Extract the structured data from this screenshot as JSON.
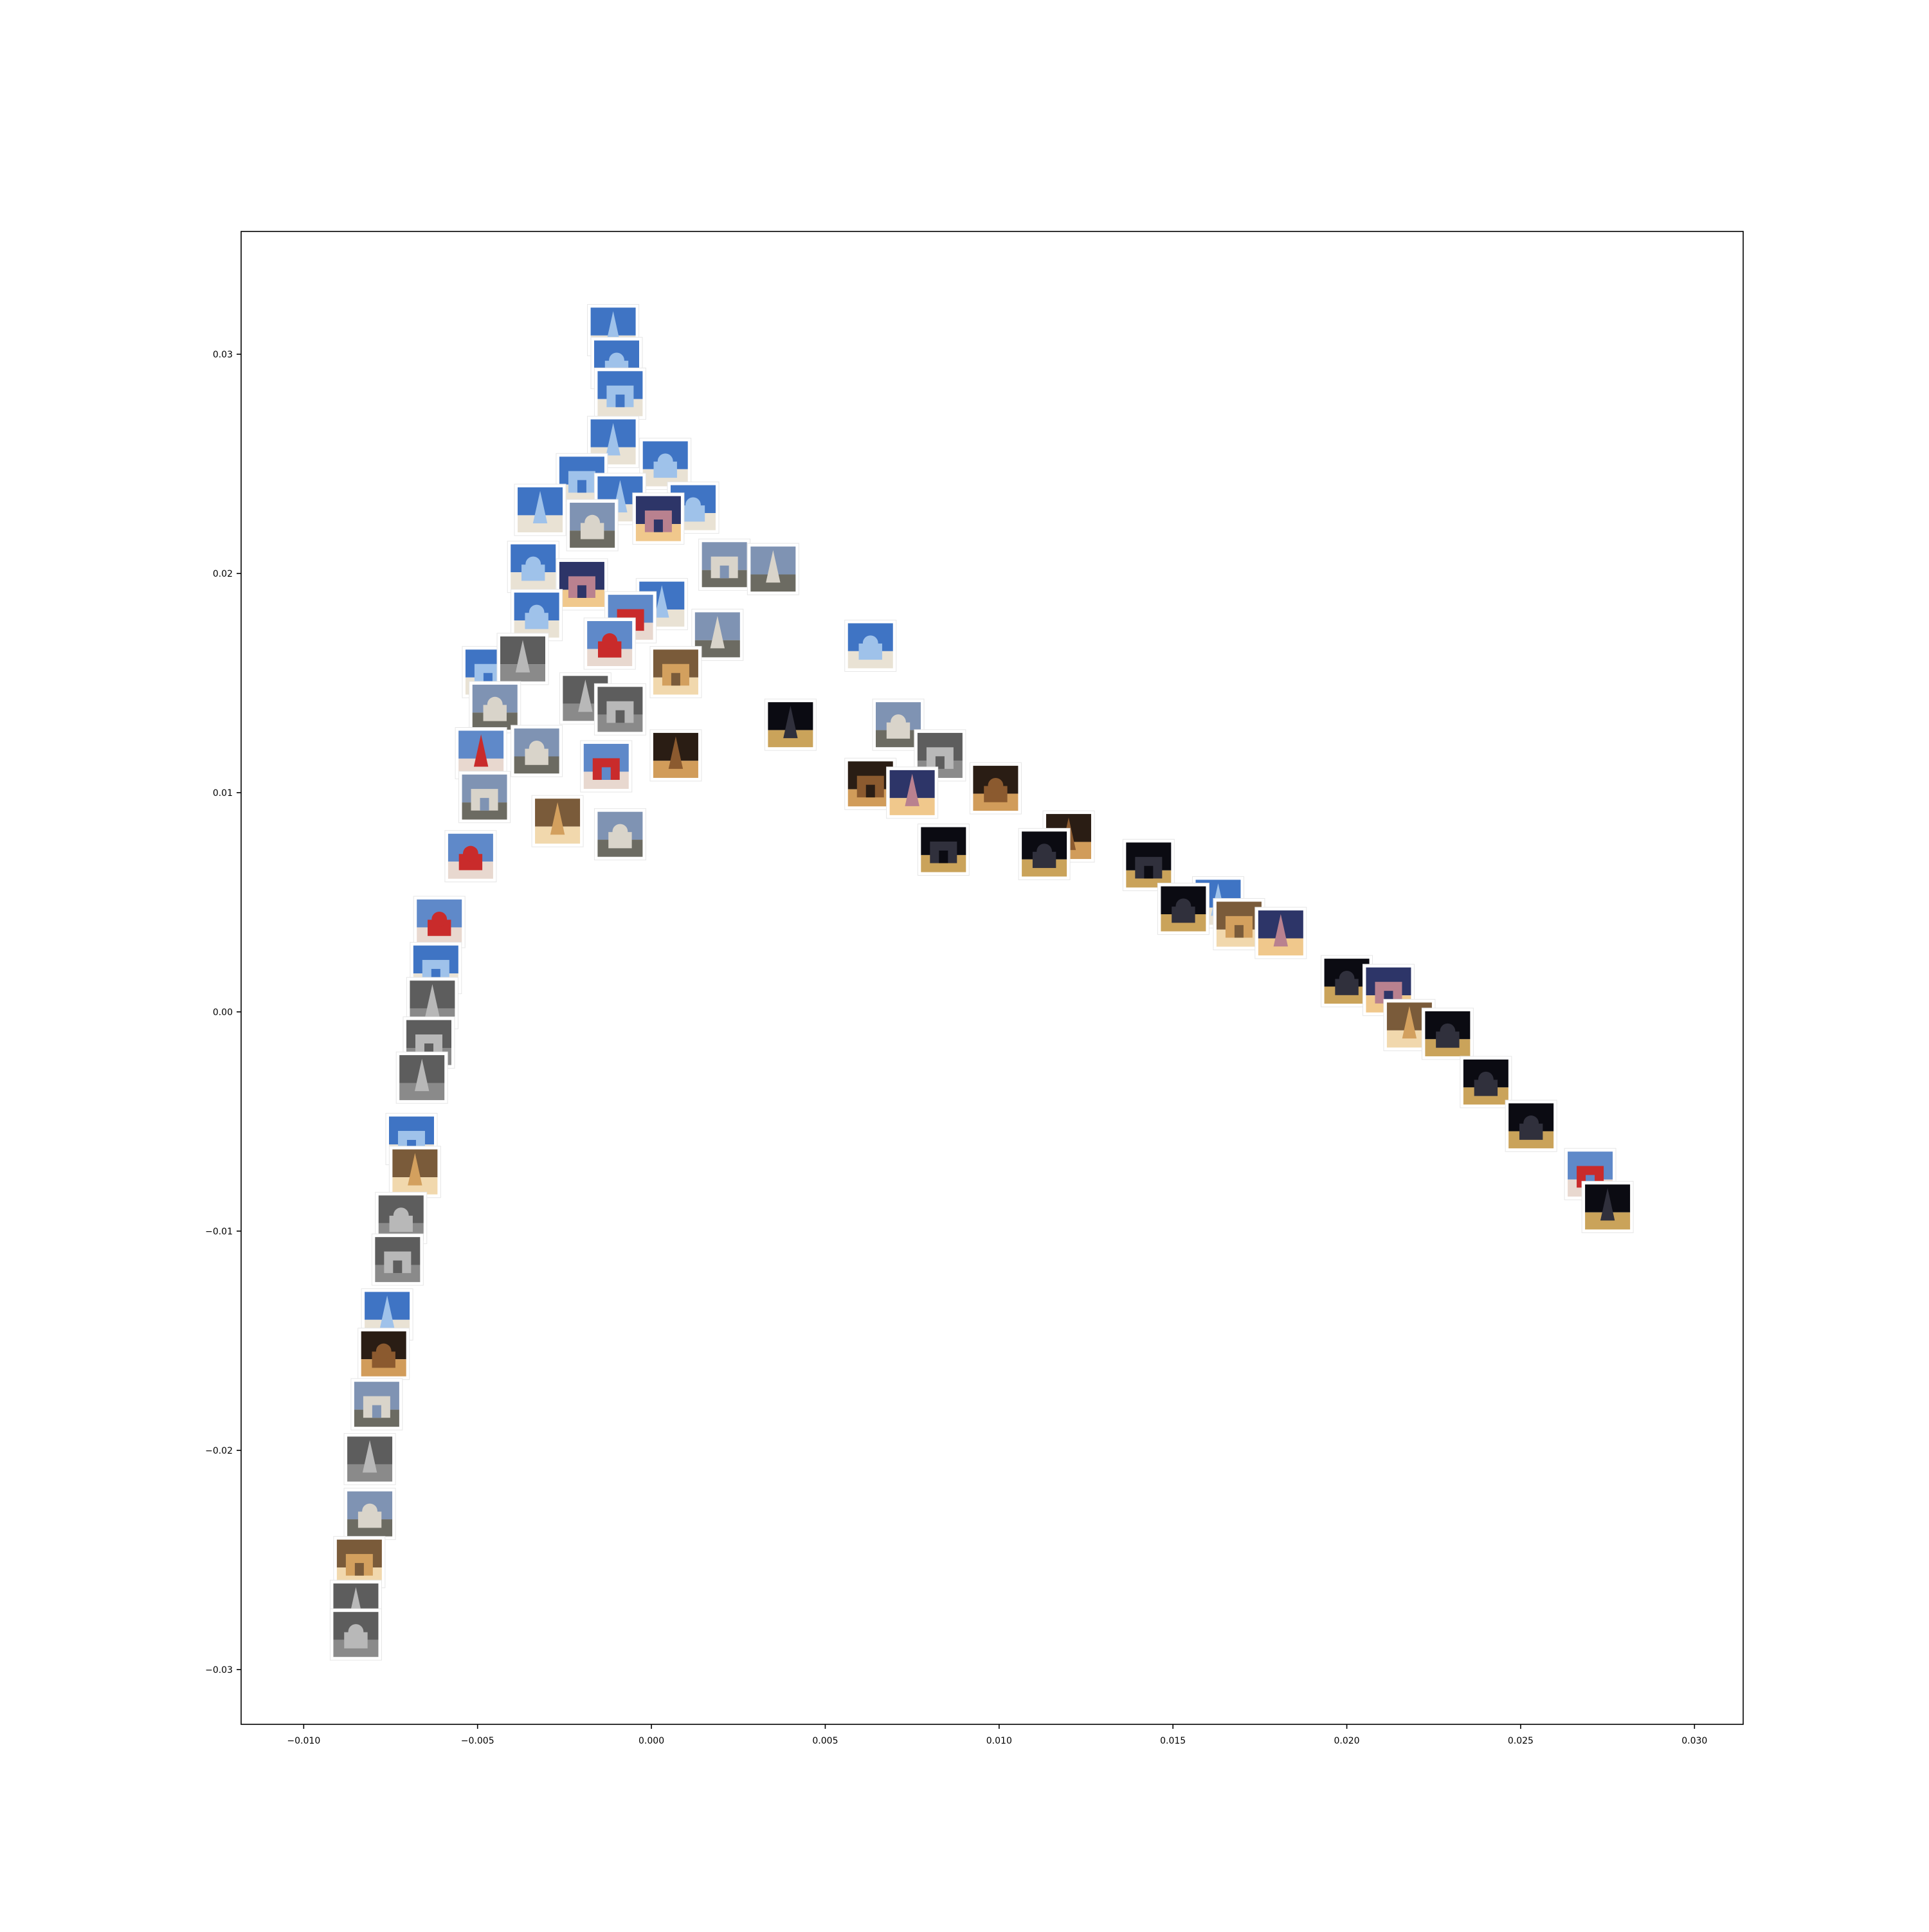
{
  "chart_data": {
    "type": "scatter",
    "marker": "image-thumbnail",
    "title": "",
    "xlabel": "",
    "ylabel": "",
    "xlim": [
      -0.0118,
      0.0314
    ],
    "ylim": [
      -0.0325,
      0.0356
    ],
    "grid": false,
    "legend": "none",
    "xticks": [
      {
        "value": -0.01,
        "label": "−0.010"
      },
      {
        "value": -0.005,
        "label": "−0.005"
      },
      {
        "value": 0.0,
        "label": "0.000"
      },
      {
        "value": 0.005,
        "label": "0.005"
      },
      {
        "value": 0.01,
        "label": "0.010"
      },
      {
        "value": 0.015,
        "label": "0.015"
      },
      {
        "value": 0.02,
        "label": "0.020"
      },
      {
        "value": 0.025,
        "label": "0.025"
      },
      {
        "value": 0.03,
        "label": "0.030"
      }
    ],
    "yticks": [
      {
        "value": -0.03,
        "label": "−0.03"
      },
      {
        "value": -0.02,
        "label": "−0.02"
      },
      {
        "value": -0.01,
        "label": "−0.01"
      },
      {
        "value": 0.0,
        "label": "0.00"
      },
      {
        "value": 0.01,
        "label": "0.01"
      },
      {
        "value": 0.02,
        "label": "0.02"
      },
      {
        "value": 0.03,
        "label": "0.03"
      }
    ],
    "series": [
      {
        "points": [
          {
            "x": -0.0011,
            "y": 0.0311,
            "tone": "sky"
          },
          {
            "x": -0.001,
            "y": 0.0296,
            "tone": "sky"
          },
          {
            "x": -0.0009,
            "y": 0.0282,
            "tone": "sky"
          },
          {
            "x": -0.0011,
            "y": 0.026,
            "tone": "sky"
          },
          {
            "x": 0.0004,
            "y": 0.025,
            "tone": "sky"
          },
          {
            "x": -0.002,
            "y": 0.0243,
            "tone": "sky"
          },
          {
            "x": -0.0009,
            "y": 0.0234,
            "tone": "sky"
          },
          {
            "x": 0.0012,
            "y": 0.023,
            "tone": "sky"
          },
          {
            "x": 0.0002,
            "y": 0.0225,
            "tone": "dusk"
          },
          {
            "x": -0.0032,
            "y": 0.0229,
            "tone": "sky"
          },
          {
            "x": -0.0017,
            "y": 0.0222,
            "tone": "stone"
          },
          {
            "x": 0.0021,
            "y": 0.0204,
            "tone": "stone"
          },
          {
            "x": 0.0035,
            "y": 0.0202,
            "tone": "stone"
          },
          {
            "x": -0.0034,
            "y": 0.0203,
            "tone": "sky"
          },
          {
            "x": -0.002,
            "y": 0.0195,
            "tone": "dusk"
          },
          {
            "x": 0.0003,
            "y": 0.0186,
            "tone": "sky"
          },
          {
            "x": -0.0033,
            "y": 0.0181,
            "tone": "sky"
          },
          {
            "x": -0.0006,
            "y": 0.018,
            "tone": "red"
          },
          {
            "x": 0.0019,
            "y": 0.0172,
            "tone": "stone"
          },
          {
            "x": 0.0063,
            "y": 0.0167,
            "tone": "sky"
          },
          {
            "x": -0.0047,
            "y": 0.0155,
            "tone": "sky"
          },
          {
            "x": -0.0037,
            "y": 0.0161,
            "tone": "gray"
          },
          {
            "x": -0.0012,
            "y": 0.0168,
            "tone": "red"
          },
          {
            "x": 0.0007,
            "y": 0.0155,
            "tone": "warm"
          },
          {
            "x": -0.0019,
            "y": 0.0143,
            "tone": "gray"
          },
          {
            "x": -0.0045,
            "y": 0.0139,
            "tone": "stone"
          },
          {
            "x": -0.0009,
            "y": 0.0138,
            "tone": "gray"
          },
          {
            "x": 0.004,
            "y": 0.0131,
            "tone": "night"
          },
          {
            "x": 0.0071,
            "y": 0.0131,
            "tone": "stone"
          },
          {
            "x": 0.0083,
            "y": 0.0117,
            "tone": "gray"
          },
          {
            "x": -0.0049,
            "y": 0.0118,
            "tone": "red"
          },
          {
            "x": -0.0033,
            "y": 0.0119,
            "tone": "stone"
          },
          {
            "x": -0.0013,
            "y": 0.0112,
            "tone": "red"
          },
          {
            "x": 0.0007,
            "y": 0.0117,
            "tone": "brown"
          },
          {
            "x": 0.0099,
            "y": 0.0102,
            "tone": "brown"
          },
          {
            "x": -0.0048,
            "y": 0.0098,
            "tone": "stone"
          },
          {
            "x": -0.0027,
            "y": 0.0087,
            "tone": "warm"
          },
          {
            "x": -0.0009,
            "y": 0.0081,
            "tone": "stone"
          },
          {
            "x": 0.0063,
            "y": 0.0104,
            "tone": "brown"
          },
          {
            "x": 0.0075,
            "y": 0.01,
            "tone": "dusk"
          },
          {
            "x": -0.0052,
            "y": 0.0071,
            "tone": "red"
          },
          {
            "x": 0.0084,
            "y": 0.0074,
            "tone": "night"
          },
          {
            "x": 0.012,
            "y": 0.008,
            "tone": "brown"
          },
          {
            "x": 0.0113,
            "y": 0.0072,
            "tone": "night"
          },
          {
            "x": 0.0143,
            "y": 0.0067,
            "tone": "night"
          },
          {
            "x": 0.0163,
            "y": 0.005,
            "tone": "sky"
          },
          {
            "x": 0.0153,
            "y": 0.0047,
            "tone": "night"
          },
          {
            "x": 0.0169,
            "y": 0.004,
            "tone": "warm"
          },
          {
            "x": 0.0181,
            "y": 0.0036,
            "tone": "dusk"
          },
          {
            "x": -0.0061,
            "y": 0.0041,
            "tone": "red"
          },
          {
            "x": -0.0062,
            "y": 0.002,
            "tone": "sky"
          },
          {
            "x": -0.0063,
            "y": 0.0004,
            "tone": "gray"
          },
          {
            "x": 0.02,
            "y": 0.0014,
            "tone": "night"
          },
          {
            "x": 0.0212,
            "y": 0.001,
            "tone": "dusk"
          },
          {
            "x": 0.0218,
            "y": -0.0006,
            "tone": "warm"
          },
          {
            "x": 0.0229,
            "y": -0.001,
            "tone": "night"
          },
          {
            "x": -0.0064,
            "y": -0.0014,
            "tone": "gray"
          },
          {
            "x": -0.0066,
            "y": -0.003,
            "tone": "gray"
          },
          {
            "x": 0.024,
            "y": -0.0032,
            "tone": "night"
          },
          {
            "x": -0.0069,
            "y": -0.0058,
            "tone": "sky"
          },
          {
            "x": -0.0068,
            "y": -0.0073,
            "tone": "warm"
          },
          {
            "x": 0.0253,
            "y": -0.0052,
            "tone": "night"
          },
          {
            "x": 0.027,
            "y": -0.0074,
            "tone": "red"
          },
          {
            "x": 0.0275,
            "y": -0.0089,
            "tone": "night"
          },
          {
            "x": -0.0072,
            "y": -0.0094,
            "tone": "gray"
          },
          {
            "x": -0.0073,
            "y": -0.0113,
            "tone": "gray"
          },
          {
            "x": -0.0076,
            "y": -0.0138,
            "tone": "sky"
          },
          {
            "x": -0.0077,
            "y": -0.0156,
            "tone": "brown"
          },
          {
            "x": -0.0079,
            "y": -0.0179,
            "tone": "stone"
          },
          {
            "x": -0.0081,
            "y": -0.0204,
            "tone": "gray"
          },
          {
            "x": -0.0081,
            "y": -0.0229,
            "tone": "stone"
          },
          {
            "x": -0.0084,
            "y": -0.0251,
            "tone": "warm"
          },
          {
            "x": -0.0085,
            "y": -0.0271,
            "tone": "gray"
          },
          {
            "x": -0.0085,
            "y": -0.0284,
            "tone": "gray"
          }
        ]
      }
    ]
  },
  "colors": {
    "axes": "#000000",
    "background": "#ffffff",
    "tones": {
      "sky": [
        "#3f74c4",
        "#9fc2ea",
        "#e9e2d4"
      ],
      "stone": [
        "#7f93b3",
        "#d9d4ca",
        "#6c6b62"
      ],
      "night": [
        "#0b0b12",
        "#30303c",
        "#caa35a"
      ],
      "dusk": [
        "#2d3568",
        "#b9818f",
        "#f0c88c"
      ],
      "red": [
        "#5f89c9",
        "#c92b2b",
        "#e8d8cf"
      ],
      "gray": [
        "#5d5d5d",
        "#b8b8b8",
        "#8a8a8a"
      ],
      "warm": [
        "#7a5b3a",
        "#d3a05e",
        "#f1d8ad"
      ],
      "brown": [
        "#2a1d14",
        "#8b5a2f",
        "#d19c5a"
      ]
    }
  }
}
